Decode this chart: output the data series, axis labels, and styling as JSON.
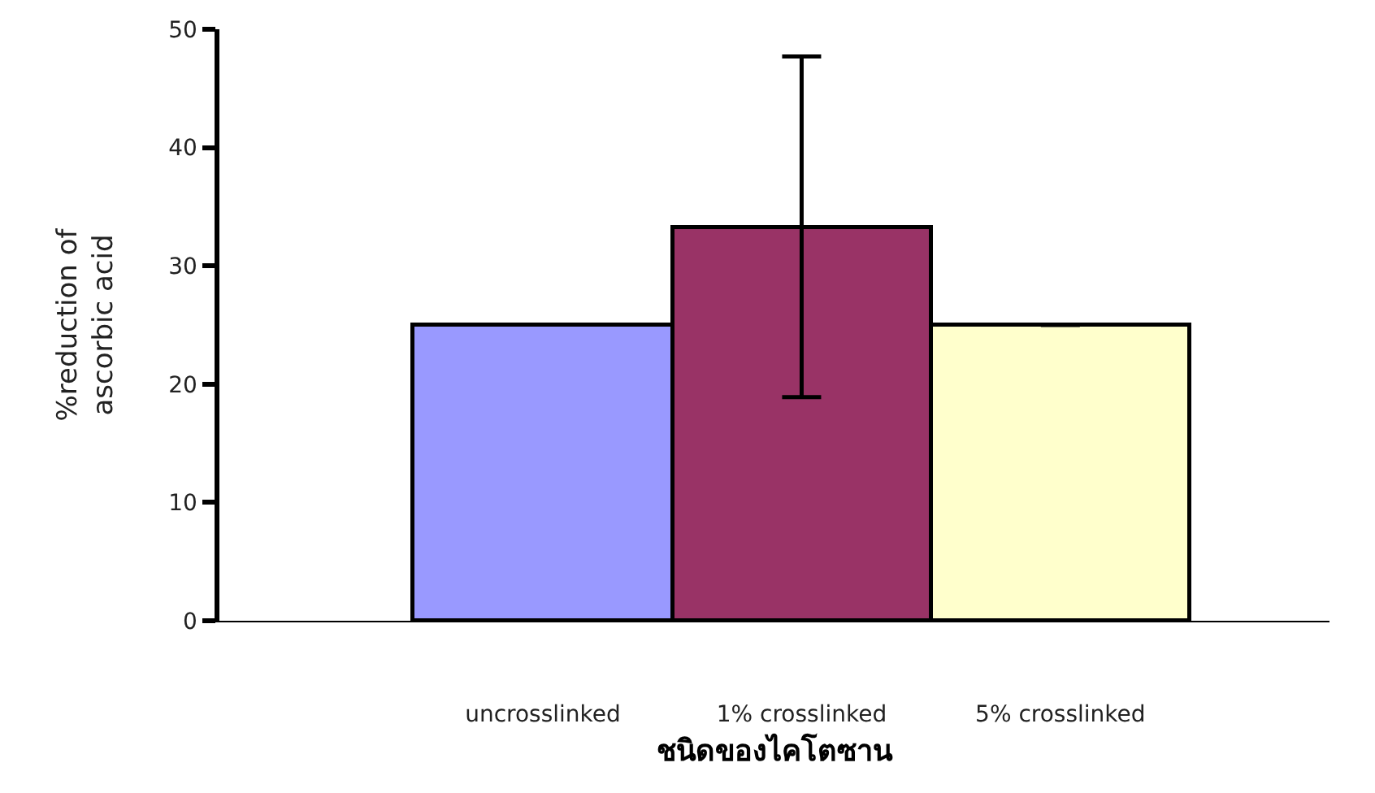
{
  "chart_data": {
    "type": "bar",
    "xlabel": "ชนิดของไคโตซาน",
    "ylabel": "%reduction of\nascorbic acid",
    "categories": [
      "uncrosslinked",
      "1% crosslinked",
      "5% crosslinked"
    ],
    "values": [
      25.0,
      33.3,
      25.0
    ],
    "errors": [
      null,
      14.4,
      0
    ],
    "colors": [
      "#9999ff",
      "#993366",
      "#ffffcc"
    ],
    "ylim": [
      0,
      50
    ],
    "yticks": [
      0,
      10,
      20,
      30,
      40,
      50
    ]
  }
}
